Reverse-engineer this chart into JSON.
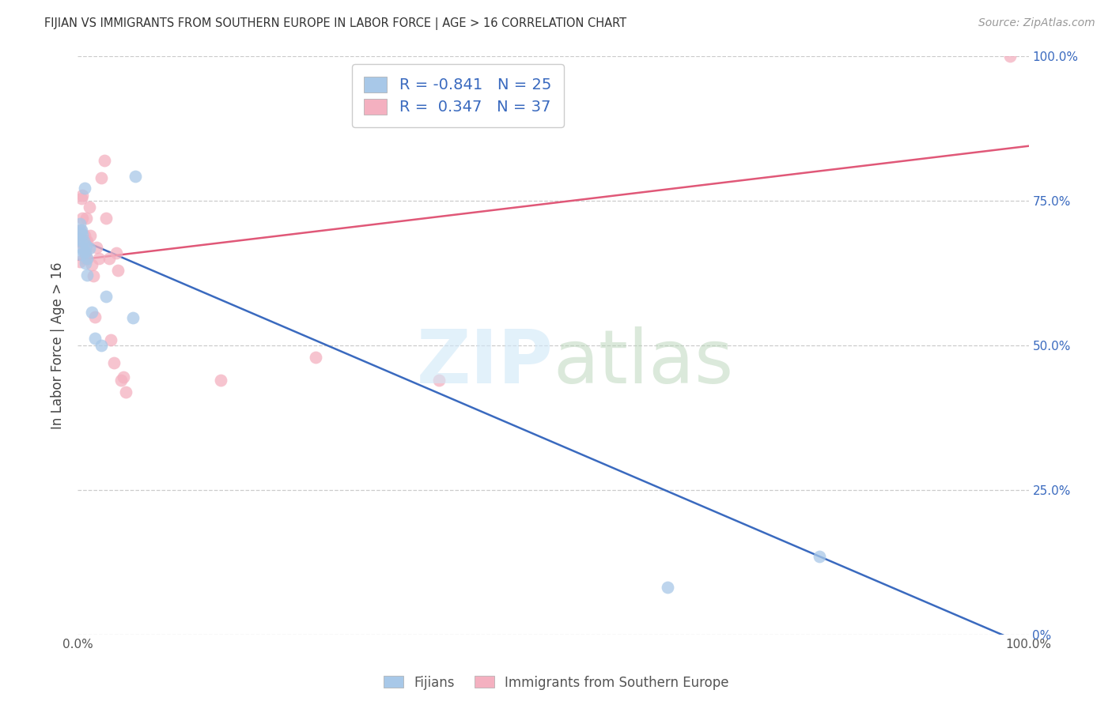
{
  "title": "FIJIAN VS IMMIGRANTS FROM SOUTHERN EUROPE IN LABOR FORCE | AGE > 16 CORRELATION CHART",
  "source": "Source: ZipAtlas.com",
  "ylabel": "In Labor Force | Age > 16",
  "xlim": [
    0.0,
    1.0
  ],
  "ylim": [
    0.0,
    1.0
  ],
  "fijian_color": "#a8c8e8",
  "immigrant_color": "#f4b0c0",
  "fijian_line_color": "#3a6abf",
  "immigrant_line_color": "#e05878",
  "fijian_R": -0.841,
  "fijian_N": 25,
  "immigrant_R": 0.347,
  "immigrant_N": 37,
  "background_color": "#ffffff",
  "grid_color": "#cccccc",
  "blue_line_x0": 0.0,
  "blue_line_y0": 0.685,
  "blue_line_x1": 1.0,
  "blue_line_y1": -0.02,
  "pink_line_x0": 0.0,
  "pink_line_y0": 0.648,
  "pink_line_x1": 1.0,
  "pink_line_y1": 0.845,
  "fijian_x": [
    0.001,
    0.002,
    0.003,
    0.003,
    0.004,
    0.004,
    0.005,
    0.005,
    0.006,
    0.006,
    0.007,
    0.008,
    0.008,
    0.009,
    0.01,
    0.01,
    0.012,
    0.015,
    0.018,
    0.025,
    0.03,
    0.06,
    0.058,
    0.62,
    0.78
  ],
  "fijian_y": [
    0.685,
    0.71,
    0.695,
    0.658,
    0.68,
    0.7,
    0.668,
    0.692,
    0.68,
    0.662,
    0.772,
    0.642,
    0.662,
    0.672,
    0.65,
    0.622,
    0.668,
    0.558,
    0.512,
    0.5,
    0.585,
    0.792,
    0.548,
    0.082,
    0.135
  ],
  "immigrant_x": [
    0.001,
    0.002,
    0.003,
    0.003,
    0.004,
    0.005,
    0.005,
    0.006,
    0.007,
    0.007,
    0.008,
    0.008,
    0.009,
    0.01,
    0.01,
    0.012,
    0.013,
    0.015,
    0.016,
    0.018,
    0.02,
    0.022,
    0.025,
    0.028,
    0.03,
    0.033,
    0.035,
    0.038,
    0.04,
    0.042,
    0.045,
    0.048,
    0.05,
    0.15,
    0.25,
    0.38,
    0.98
  ],
  "immigrant_y": [
    0.68,
    0.645,
    0.7,
    0.68,
    0.755,
    0.76,
    0.72,
    0.67,
    0.65,
    0.69,
    0.66,
    0.68,
    0.72,
    0.65,
    0.68,
    0.74,
    0.69,
    0.64,
    0.62,
    0.55,
    0.67,
    0.65,
    0.79,
    0.82,
    0.72,
    0.65,
    0.51,
    0.47,
    0.66,
    0.63,
    0.44,
    0.445,
    0.42,
    0.44,
    0.48,
    0.44,
    1.0
  ]
}
